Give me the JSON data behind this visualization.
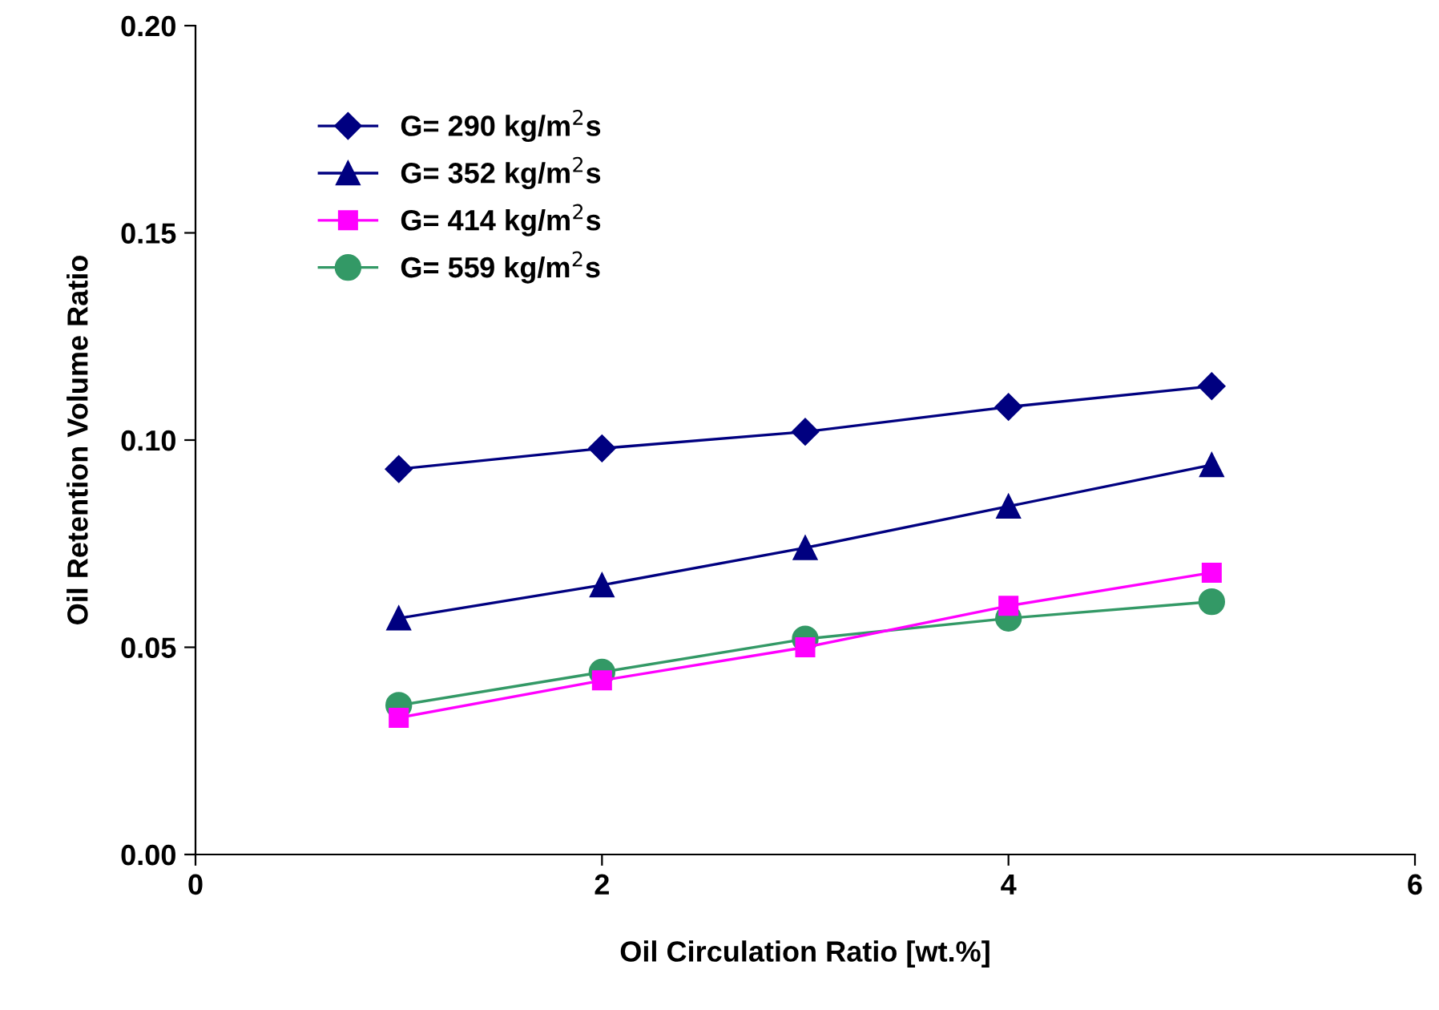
{
  "chart_data": {
    "type": "line",
    "xlabel": "Oil Circulation Ratio [wt.%]",
    "ylabel": "Oil Retention Volume Ratio",
    "x": [
      1,
      2,
      3,
      4,
      5
    ],
    "series": [
      {
        "name": "G= 290 kg/m$^{2}$s",
        "color": "#000080",
        "marker": "diamond",
        "values": [
          0.093,
          0.098,
          0.102,
          0.108,
          0.113
        ]
      },
      {
        "name": "G= 352 kg/m$^{2}$s",
        "color": "#000080",
        "marker": "triangle",
        "values": [
          0.057,
          0.065,
          0.074,
          0.084,
          0.094
        ]
      },
      {
        "name": "G= 414 kg/m$^{2}$s",
        "color": "#ff00ff",
        "marker": "square",
        "values": [
          0.033,
          0.042,
          0.05,
          0.06,
          0.068
        ]
      },
      {
        "name": "G= 559 kg/m$^{2}$s",
        "color": "#339966",
        "marker": "circle",
        "values": [
          0.036,
          0.044,
          0.052,
          0.057,
          0.061
        ]
      }
    ],
    "xlim": [
      0,
      6
    ],
    "xticks": [
      0,
      2,
      4,
      6
    ],
    "ylim": [
      0,
      0.2
    ],
    "yticks": [
      {
        "value": 0,
        "label": "0.00"
      },
      {
        "value": 0.05,
        "label": "0.05"
      },
      {
        "value": 0.1,
        "label": "0.10"
      },
      {
        "value": 0.15,
        "label": "0.15"
      },
      {
        "value": 0.2,
        "label": "0.20"
      }
    ],
    "grid": false,
    "legend": "top left",
    "line_style": "solid"
  }
}
